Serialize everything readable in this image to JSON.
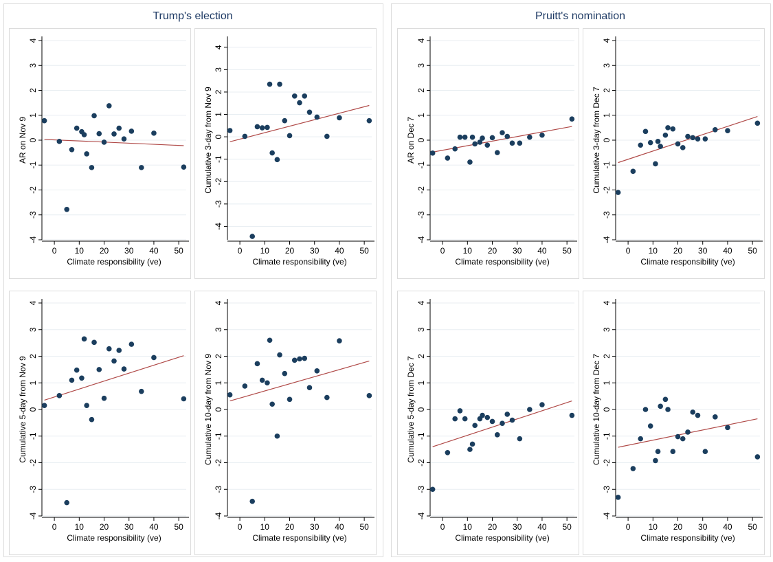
{
  "colors": {
    "point": "#1b3e5e",
    "fit": "#b04a48",
    "grid": "#e8eef2",
    "axis": "#000000",
    "title": "#1e3a64"
  },
  "groups": [
    {
      "title": "Trump's election"
    },
    {
      "title": "Pruitt's nomination"
    }
  ],
  "chart_data": [
    {
      "type": "scatter",
      "group": "Trump's election",
      "xlabel": "Climate responsibility (ve)",
      "ylabel": "AR on Nov 9",
      "xlim": [
        -5,
        53
      ],
      "ylim": [
        -4,
        4
      ],
      "xticks": [
        0,
        10,
        20,
        30,
        40,
        50
      ],
      "yticks": [
        -4,
        -3,
        -2,
        -1,
        0,
        1,
        2,
        3,
        4
      ],
      "grid": true,
      "points": [
        [
          -4,
          0.78
        ],
        [
          2,
          -0.05
        ],
        [
          5,
          -2.78
        ],
        [
          7,
          -0.38
        ],
        [
          9,
          0.48
        ],
        [
          11,
          0.34
        ],
        [
          12,
          0.22
        ],
        [
          13,
          -0.55
        ],
        [
          15,
          -1.1
        ],
        [
          16,
          0.98
        ],
        [
          18,
          0.26
        ],
        [
          20,
          -0.08
        ],
        [
          22,
          1.38
        ],
        [
          24,
          0.25
        ],
        [
          26,
          0.48
        ],
        [
          28,
          0.05
        ],
        [
          31,
          0.36
        ],
        [
          35,
          -1.1
        ],
        [
          40,
          0.28
        ],
        [
          52,
          -1.08
        ]
      ],
      "fit": [
        [
          -4,
          0.03
        ],
        [
          52,
          -0.22
        ]
      ]
    },
    {
      "type": "scatter",
      "group": "Trump's election",
      "xlabel": "Climate responsibility (ve)",
      "ylabel": "Cumulative 3-day from Nov 9",
      "xlim": [
        -5,
        53
      ],
      "ylim": [
        -4.6,
        4.3
      ],
      "xticks": [
        0,
        10,
        20,
        30,
        40,
        50
      ],
      "yticks": [
        -4,
        -3,
        -2,
        -1,
        0,
        1,
        2,
        3,
        4
      ],
      "grid": true,
      "points": [
        [
          -4,
          0.28
        ],
        [
          2,
          0.02
        ],
        [
          5,
          -4.45
        ],
        [
          7,
          0.45
        ],
        [
          9,
          0.4
        ],
        [
          11,
          0.42
        ],
        [
          12,
          2.35
        ],
        [
          13,
          -0.72
        ],
        [
          15,
          -1.02
        ],
        [
          16,
          2.35
        ],
        [
          18,
          0.72
        ],
        [
          20,
          0.05
        ],
        [
          22,
          1.82
        ],
        [
          24,
          1.52
        ],
        [
          26,
          1.82
        ],
        [
          28,
          1.1
        ],
        [
          31,
          0.88
        ],
        [
          35,
          0.02
        ],
        [
          40,
          0.85
        ],
        [
          52,
          0.72
        ]
      ],
      "fit": [
        [
          -4,
          -0.22
        ],
        [
          52,
          1.4
        ]
      ]
    },
    {
      "type": "scatter",
      "group": "Pruitt's nomination",
      "xlabel": "Climate responsibility (ve)",
      "ylabel": "AR on Dec 7",
      "xlim": [
        -5,
        53
      ],
      "ylim": [
        -4,
        4
      ],
      "xticks": [
        0,
        10,
        20,
        30,
        40,
        50
      ],
      "yticks": [
        -4,
        -3,
        -2,
        -1,
        0,
        1,
        2,
        3,
        4
      ],
      "grid": true,
      "points": [
        [
          -4,
          -0.52
        ],
        [
          2,
          -0.72
        ],
        [
          5,
          -0.35
        ],
        [
          7,
          0.12
        ],
        [
          9,
          0.12
        ],
        [
          11,
          -0.88
        ],
        [
          12,
          0.12
        ],
        [
          13,
          -0.15
        ],
        [
          15,
          -0.08
        ],
        [
          16,
          0.08
        ],
        [
          18,
          -0.2
        ],
        [
          20,
          0.1
        ],
        [
          22,
          -0.5
        ],
        [
          24,
          0.3
        ],
        [
          26,
          0.15
        ],
        [
          28,
          -0.12
        ],
        [
          31,
          -0.12
        ],
        [
          35,
          0.12
        ],
        [
          40,
          0.2
        ],
        [
          52,
          0.85
        ]
      ],
      "fit": [
        [
          -4,
          -0.48
        ],
        [
          52,
          0.55
        ]
      ]
    },
    {
      "type": "scatter",
      "group": "Pruitt's nomination",
      "xlabel": "Climate responsibility (ve)",
      "ylabel": "Cumulative 3-day from Dec 7",
      "xlim": [
        -5,
        53
      ],
      "ylim": [
        -4,
        4
      ],
      "xticks": [
        0,
        10,
        20,
        30,
        40,
        50
      ],
      "yticks": [
        -4,
        -3,
        -2,
        -1,
        0,
        1,
        2,
        3,
        4
      ],
      "grid": true,
      "points": [
        [
          -4,
          -2.1
        ],
        [
          2,
          -1.25
        ],
        [
          5,
          -0.2
        ],
        [
          7,
          0.35
        ],
        [
          9,
          -0.1
        ],
        [
          11,
          -0.95
        ],
        [
          12,
          -0.05
        ],
        [
          13,
          -0.25
        ],
        [
          15,
          0.2
        ],
        [
          16,
          0.5
        ],
        [
          18,
          0.45
        ],
        [
          20,
          -0.15
        ],
        [
          22,
          -0.3
        ],
        [
          24,
          0.15
        ],
        [
          26,
          0.1
        ],
        [
          28,
          0.05
        ],
        [
          31,
          0.05
        ],
        [
          35,
          0.42
        ],
        [
          40,
          0.38
        ],
        [
          52,
          0.68
        ]
      ],
      "fit": [
        [
          -4,
          -0.9
        ],
        [
          52,
          0.95
        ]
      ]
    },
    {
      "type": "scatter",
      "group": "Trump's election",
      "xlabel": "Climate responsibility (ve)",
      "ylabel": "Cumulative 5-day from Nov 9",
      "xlim": [
        -5,
        53
      ],
      "ylim": [
        -4,
        4
      ],
      "xticks": [
        0,
        10,
        20,
        30,
        40,
        50
      ],
      "yticks": [
        -4,
        -3,
        -2,
        -1,
        0,
        1,
        2,
        3,
        4
      ],
      "grid": true,
      "points": [
        [
          -4,
          0.15
        ],
        [
          2,
          0.52
        ],
        [
          5,
          -3.5
        ],
        [
          7,
          1.1
        ],
        [
          9,
          1.48
        ],
        [
          11,
          1.18
        ],
        [
          12,
          2.65
        ],
        [
          13,
          0.15
        ],
        [
          15,
          -0.38
        ],
        [
          16,
          2.52
        ],
        [
          18,
          1.5
        ],
        [
          20,
          0.42
        ],
        [
          22,
          2.28
        ],
        [
          24,
          1.82
        ],
        [
          26,
          2.22
        ],
        [
          28,
          1.52
        ],
        [
          31,
          2.45
        ],
        [
          35,
          0.68
        ],
        [
          40,
          1.95
        ],
        [
          52,
          0.4
        ]
      ],
      "fit": [
        [
          -4,
          0.35
        ],
        [
          52,
          2.02
        ]
      ]
    },
    {
      "type": "scatter",
      "group": "Trump's election",
      "xlabel": "Climate responsibility (ve)",
      "ylabel": "Cumulative 10-day from Nov 9",
      "xlim": [
        -5,
        53
      ],
      "ylim": [
        -4,
        4
      ],
      "xticks": [
        0,
        10,
        20,
        30,
        40,
        50
      ],
      "yticks": [
        -4,
        -3,
        -2,
        -1,
        0,
        1,
        2,
        3,
        4
      ],
      "grid": true,
      "points": [
        [
          -4,
          0.55
        ],
        [
          2,
          0.88
        ],
        [
          5,
          -3.45
        ],
        [
          7,
          1.72
        ],
        [
          9,
          1.1
        ],
        [
          11,
          1.0
        ],
        [
          12,
          2.6
        ],
        [
          13,
          0.2
        ],
        [
          15,
          -1.0
        ],
        [
          16,
          2.05
        ],
        [
          18,
          1.35
        ],
        [
          20,
          0.38
        ],
        [
          22,
          1.85
        ],
        [
          24,
          1.9
        ],
        [
          26,
          1.92
        ],
        [
          28,
          0.82
        ],
        [
          31,
          1.45
        ],
        [
          35,
          0.45
        ],
        [
          40,
          2.58
        ],
        [
          52,
          0.52
        ]
      ],
      "fit": [
        [
          -4,
          0.32
        ],
        [
          52,
          1.82
        ]
      ]
    },
    {
      "type": "scatter",
      "group": "Pruitt's nomination",
      "xlabel": "Climate responsibility (ve)",
      "ylabel": "Cumulative 5-day from Dec 7",
      "xlim": [
        -5,
        53
      ],
      "ylim": [
        -4,
        4
      ],
      "xticks": [
        0,
        10,
        20,
        30,
        40,
        50
      ],
      "yticks": [
        -4,
        -3,
        -2,
        -1,
        0,
        1,
        2,
        3,
        4
      ],
      "grid": true,
      "points": [
        [
          -4,
          -3.0
        ],
        [
          2,
          -1.62
        ],
        [
          5,
          -0.35
        ],
        [
          7,
          -0.05
        ],
        [
          9,
          -0.35
        ],
        [
          11,
          -1.5
        ],
        [
          12,
          -1.3
        ],
        [
          13,
          -0.6
        ],
        [
          15,
          -0.35
        ],
        [
          16,
          -0.22
        ],
        [
          18,
          -0.3
        ],
        [
          20,
          -0.45
        ],
        [
          22,
          -0.95
        ],
        [
          24,
          -0.52
        ],
        [
          26,
          -0.18
        ],
        [
          28,
          -0.4
        ],
        [
          31,
          -1.1
        ],
        [
          35,
          0.0
        ],
        [
          40,
          0.18
        ],
        [
          52,
          -0.22
        ]
      ],
      "fit": [
        [
          -4,
          -1.4
        ],
        [
          52,
          0.32
        ]
      ]
    },
    {
      "type": "scatter",
      "group": "Pruitt's nomination",
      "xlabel": "Climate responsibility (ve)",
      "ylabel": "Cumulative 10-day from Dec 7",
      "xlim": [
        -5,
        53
      ],
      "ylim": [
        -4,
        4
      ],
      "xticks": [
        0,
        10,
        20,
        30,
        40,
        50
      ],
      "yticks": [
        -4,
        -3,
        -2,
        -1,
        0,
        1,
        2,
        3,
        4
      ],
      "grid": true,
      "points": [
        [
          -4,
          -3.3
        ],
        [
          2,
          -2.22
        ],
        [
          5,
          -1.1
        ],
        [
          7,
          0.0
        ],
        [
          9,
          -0.62
        ],
        [
          11,
          -1.92
        ],
        [
          12,
          -1.58
        ],
        [
          13,
          0.12
        ],
        [
          15,
          0.38
        ],
        [
          16,
          0.0
        ],
        [
          18,
          -1.58
        ],
        [
          20,
          -1.02
        ],
        [
          22,
          -1.1
        ],
        [
          24,
          -0.85
        ],
        [
          26,
          -0.1
        ],
        [
          28,
          -0.22
        ],
        [
          31,
          -1.58
        ],
        [
          35,
          -0.28
        ],
        [
          40,
          -0.68
        ],
        [
          52,
          -1.78
        ]
      ],
      "fit": [
        [
          -4,
          -1.42
        ],
        [
          52,
          -0.35
        ]
      ]
    }
  ]
}
